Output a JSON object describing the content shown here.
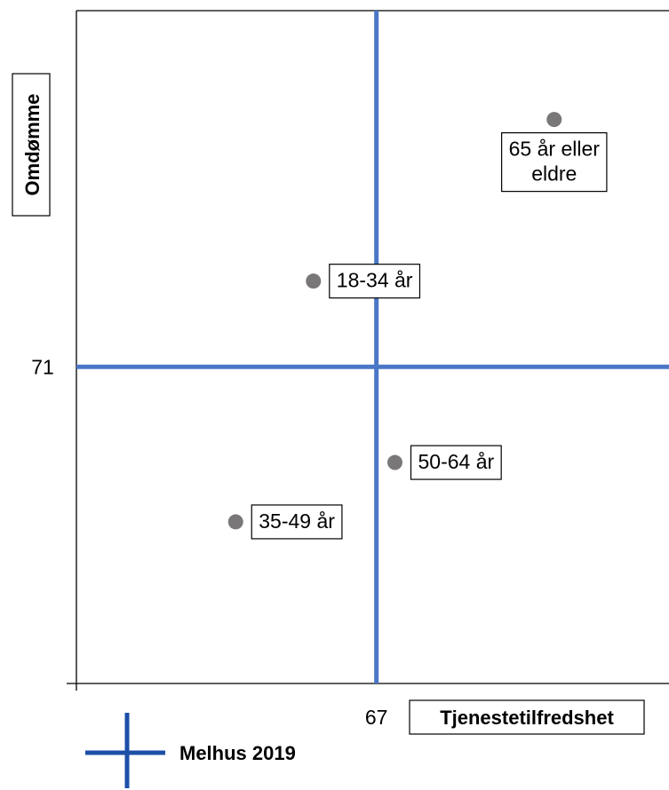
{
  "chart_data": {
    "type": "scatter",
    "title": "",
    "xlabel": "Tjenestetilfredshet",
    "ylabel": "Omdømme",
    "xlim": [
      58.9,
      74.9
    ],
    "ylim": [
      61.4,
      81.8
    ],
    "reference_lines": {
      "x": 67,
      "y": 71,
      "x_label": "67",
      "y_label": "71"
    },
    "points": [
      {
        "label": "65 år eller eldre",
        "label_lines": [
          "65 år eller",
          "eldre"
        ],
        "x": 71.8,
        "y": 78.5
      },
      {
        "label": "18-34 år",
        "label_lines": [
          "18-34 år"
        ],
        "x": 65.3,
        "y": 73.6
      },
      {
        "label": "50-64 år",
        "label_lines": [
          "50-64 år"
        ],
        "x": 67.5,
        "y": 68.1
      },
      {
        "label": "35-49 år",
        "label_lines": [
          "35-49 år"
        ],
        "x": 63.2,
        "y": 66.3
      }
    ],
    "point_color": "#7a7778",
    "line_color": "#4a76c6",
    "legend": {
      "label": "Melhus 2019",
      "color": "#1c4fa8",
      "position": "bottom-left"
    },
    "grid": false
  }
}
